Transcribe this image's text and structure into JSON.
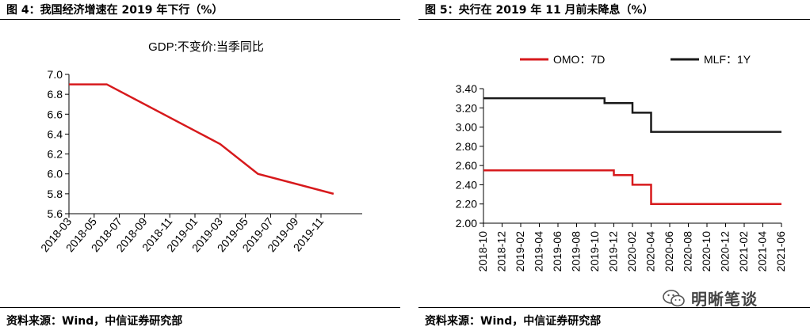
{
  "left": {
    "title": "图 4：我国经济增速在 2019 年下行（%）",
    "source": "资料来源：Wind，中信证券研究部"
  },
  "right": {
    "title": "图 5：央行在 2019 年 11 月前未降息（%）",
    "source": "资料来源：Wind，中信证券研究部"
  },
  "watermark": {
    "text": "明晰笔谈",
    "icon": "wechat-icon"
  },
  "chart_data": [
    {
      "type": "line",
      "title": "GDP:不变价:当季同比",
      "x_tick_labels": [
        "2018-03",
        "2018-05",
        "2018-07",
        "2018-09",
        "2018-11",
        "2019-01",
        "2019-03",
        "2019-05",
        "2019-07",
        "2019-09",
        "2019-11"
      ],
      "y_tick_labels": [
        "5.6",
        "5.8",
        "6.0",
        "6.2",
        "6.4",
        "6.6",
        "6.8",
        "7.0"
      ],
      "ylim": [
        5.6,
        7.0
      ],
      "legend": "none",
      "grid": false,
      "series": [
        {
          "name": "",
          "color": "#d7191c",
          "points": [
            {
              "x": "2018-03",
              "y": 6.9
            },
            {
              "x": "2018-06",
              "y": 6.9
            },
            {
              "x": "2019-03",
              "y": 6.3
            },
            {
              "x": "2019-06",
              "y": 6.0
            },
            {
              "x": "2019-12",
              "y": 5.8
            }
          ]
        }
      ]
    },
    {
      "type": "line",
      "title": "",
      "x_tick_labels": [
        "2018-10",
        "2018-12",
        "2019-02",
        "2019-04",
        "2019-06",
        "2019-08",
        "2019-10",
        "2019-12",
        "2020-02",
        "2020-04",
        "2020-06",
        "2020-08",
        "2020-10",
        "2020-12",
        "2021-02",
        "2021-04",
        "2021-06"
      ],
      "y_tick_labels": [
        "2.00",
        "2.20",
        "2.40",
        "2.60",
        "2.80",
        "3.00",
        "3.20",
        "3.40"
      ],
      "ylim": [
        2.0,
        3.4
      ],
      "legend": "top",
      "grid": false,
      "series": [
        {
          "name": "OMO：7D",
          "color": "#d7191c",
          "step": true,
          "points": [
            {
              "x": "2018-10",
              "y": 2.55
            },
            {
              "x": "2019-12",
              "y": 2.5
            },
            {
              "x": "2020-02",
              "y": 2.4
            },
            {
              "x": "2020-04",
              "y": 2.2
            },
            {
              "x": "2021-06",
              "y": 2.2
            }
          ]
        },
        {
          "name": "MLF：1Y",
          "color": "#1a1a1a",
          "step": true,
          "points": [
            {
              "x": "2018-10",
              "y": 3.3
            },
            {
              "x": "2019-11",
              "y": 3.25
            },
            {
              "x": "2020-02",
              "y": 3.15
            },
            {
              "x": "2020-04",
              "y": 2.95
            },
            {
              "x": "2021-06",
              "y": 2.95
            }
          ]
        }
      ]
    }
  ]
}
